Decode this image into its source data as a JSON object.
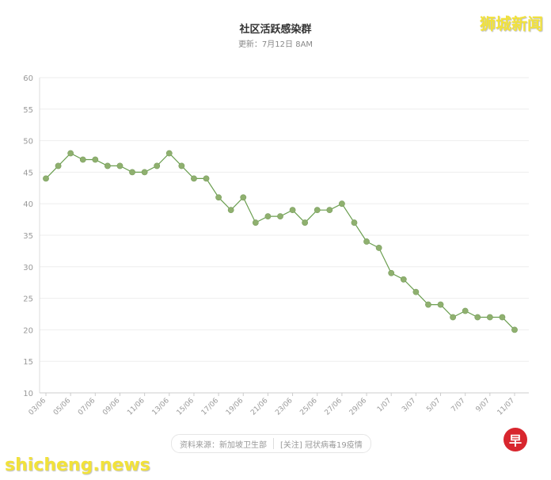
{
  "watermark_top": "狮城新闻",
  "watermark_bottom": "shicheng.news",
  "source": {
    "text": "资料来源：新加坡卫生部",
    "link": "[关注] 冠状病毒19疫情"
  },
  "logo_glyph": "早",
  "colors": {
    "line": "#6a9e4f",
    "marker": "#8fb06f",
    "grid": "#eeeeee",
    "watermark": "#f2e23a",
    "logo": "#d8262e"
  },
  "chart_data": {
    "type": "line",
    "title": "社区活跃感染群",
    "subtitle": "更新：7月12日 8AM",
    "xlabel": "",
    "ylabel": "",
    "ylim": [
      10,
      60
    ],
    "yticks": [
      10,
      15,
      20,
      25,
      30,
      35,
      40,
      45,
      50,
      55,
      60
    ],
    "grid": true,
    "legend": "none",
    "x_tick_labels": [
      "03/06",
      "05/06",
      "07/06",
      "09/06",
      "11/06",
      "13/06",
      "15/06",
      "17/06",
      "19/06",
      "21/06",
      "23/06",
      "25/06",
      "27/06",
      "29/06",
      "1/07",
      "3/07",
      "5/07",
      "7/07",
      "9/07",
      "11/07"
    ],
    "x": [
      "03/06",
      "04/06",
      "05/06",
      "06/06",
      "07/06",
      "08/06",
      "09/06",
      "10/06",
      "11/06",
      "12/06",
      "13/06",
      "14/06",
      "15/06",
      "16/06",
      "17/06",
      "18/06",
      "19/06",
      "20/06",
      "21/06",
      "22/06",
      "23/06",
      "24/06",
      "25/06",
      "26/06",
      "27/06",
      "28/06",
      "29/06",
      "30/06",
      "1/07",
      "2/07",
      "3/07",
      "4/07",
      "5/07",
      "6/07",
      "7/07",
      "8/07",
      "9/07",
      "10/07",
      "11/07"
    ],
    "series": [
      {
        "values": [
          44,
          46,
          48,
          47,
          47,
          46,
          46,
          45,
          45,
          46,
          48,
          46,
          44,
          44,
          41,
          39,
          41,
          37,
          38,
          38,
          39,
          37,
          39,
          39,
          40,
          37,
          34,
          33,
          29,
          28,
          26,
          24,
          24,
          22,
          23,
          22,
          22,
          22,
          20
        ]
      }
    ]
  }
}
